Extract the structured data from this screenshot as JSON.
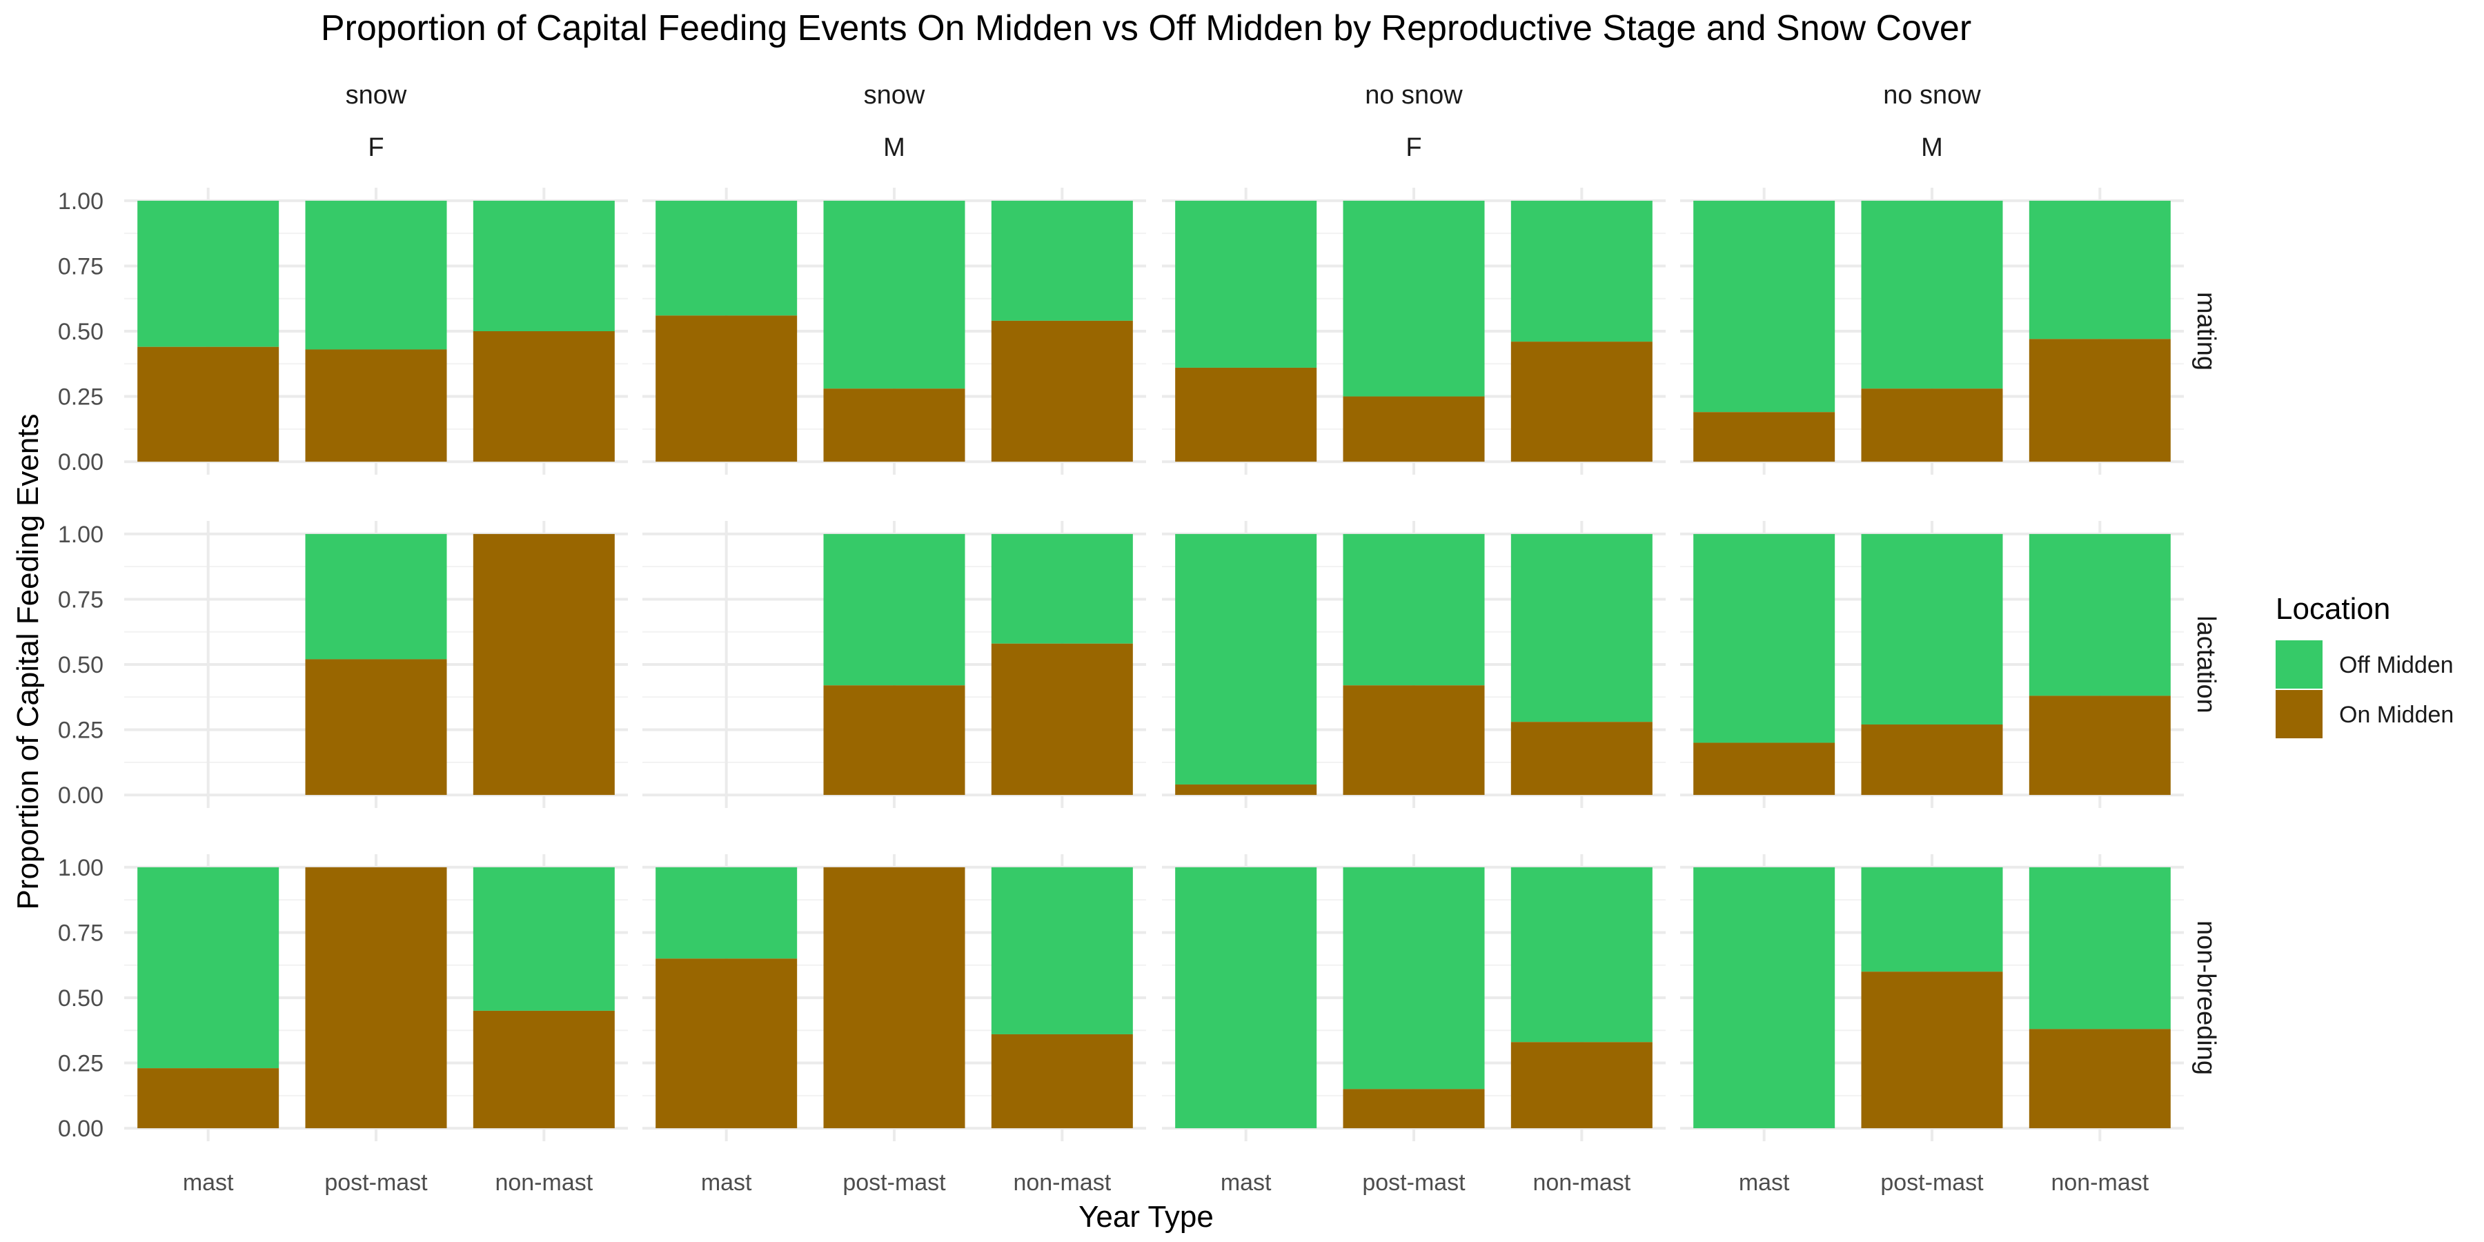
{
  "chart_data": {
    "type": "bar",
    "stacked": true,
    "title": "Proportion of Capital Feeding Events On Midden vs Off Midden by Reproductive Stage and Snow Cover",
    "xlabel": "Year Type",
    "ylabel": "Proportion of Capital Feeding Events",
    "categories": [
      "mast",
      "post-mast",
      "non-mast"
    ],
    "ylim": [
      0,
      1
    ],
    "yticks": [
      "0.00",
      "0.25",
      "0.50",
      "0.75",
      "1.00"
    ],
    "grid": true,
    "facet_columns": [
      {
        "snow": "snow",
        "sex": "F"
      },
      {
        "snow": "snow",
        "sex": "M"
      },
      {
        "snow": "no snow",
        "sex": "F"
      },
      {
        "snow": "no snow",
        "sex": "M"
      }
    ],
    "facet_rows": [
      "mating",
      "lactation",
      "non-breeding"
    ],
    "legend": {
      "title": "Location",
      "position": "right",
      "entries": [
        {
          "name": "Off Midden",
          "color": "#36CA68"
        },
        {
          "name": "On Midden",
          "color": "#996600"
        }
      ]
    },
    "on_midden_proportion": [
      [
        [
          0.44,
          0.43,
          0.5
        ],
        [
          0.56,
          0.28,
          0.54
        ],
        [
          0.36,
          0.25,
          0.46
        ],
        [
          0.19,
          0.28,
          0.47
        ]
      ],
      [
        [
          null,
          0.52,
          1.0
        ],
        [
          null,
          0.42,
          0.58
        ],
        [
          0.04,
          0.42,
          0.28
        ],
        [
          0.2,
          0.27,
          0.38
        ]
      ],
      [
        [
          0.23,
          1.0,
          0.45
        ],
        [
          0.65,
          1.0,
          0.36
        ],
        [
          0.0,
          0.15,
          0.33
        ],
        [
          0.0,
          0.6,
          0.38
        ]
      ]
    ]
  }
}
